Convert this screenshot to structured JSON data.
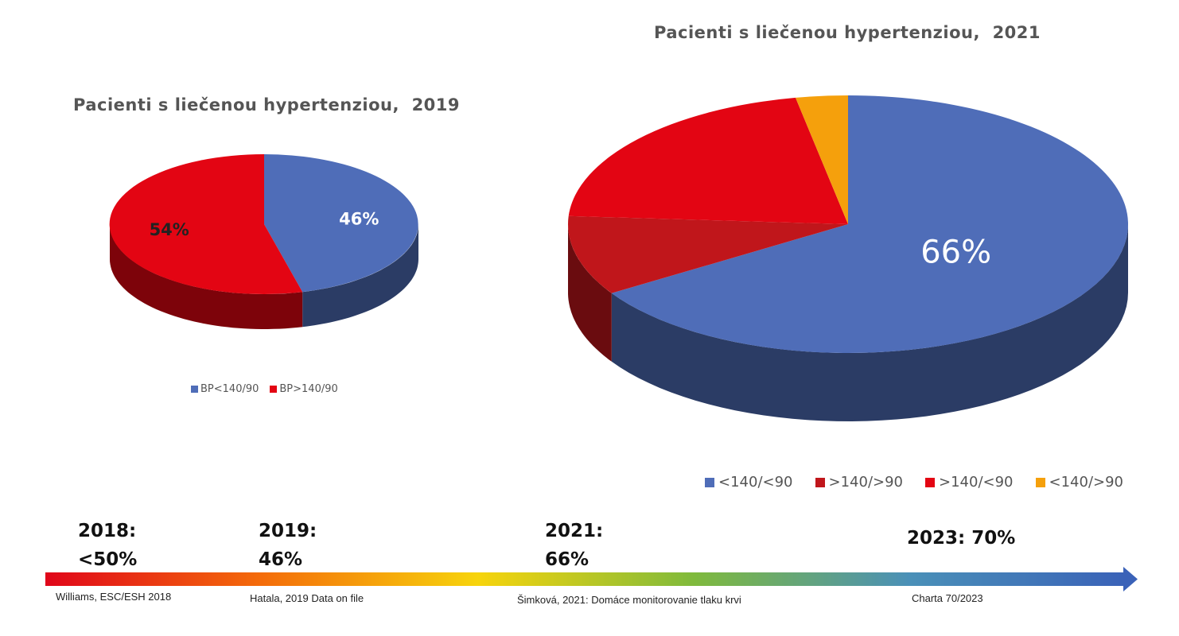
{
  "chart_data": [
    {
      "type": "pie",
      "title": "Pacienti s liečenou hypertenziou,  2019",
      "series": [
        {
          "name": "BP<140/90",
          "value": 46,
          "label": "46%",
          "color": "#4f6db8"
        },
        {
          "name": "BP>140/90",
          "value": 54,
          "label": "54%",
          "color": "#e30513"
        }
      ],
      "legend_position": "bottom"
    },
    {
      "type": "pie",
      "title": "Pacienti s liečenou hypertenziou,  2021",
      "series": [
        {
          "name": "<140/<90",
          "value": 66,
          "label": "66%",
          "color": "#4f6db8"
        },
        {
          "name": ">140/>90",
          "value": 10,
          "label": "",
          "color": "#c0161b"
        },
        {
          "name": ">140/<90",
          "value": 21,
          "label": "",
          "color": "#e30513"
        },
        {
          "name": "<140/>90",
          "value": 3,
          "label": "",
          "color": "#f5a00c"
        }
      ],
      "legend_position": "bottom"
    }
  ],
  "timeline": {
    "milestones": [
      {
        "year": "2018:",
        "value": "<50%"
      },
      {
        "year": "2019:",
        "value": "46%"
      },
      {
        "year": "2021:",
        "value": "66%"
      },
      {
        "year": "",
        "value": "2023: 70%"
      }
    ],
    "sources": [
      "Williams, ESC/ESH 2018",
      "Hatala, 2019 Data on file",
      "Šimková, 2021: Domáce monitorovanie tlaku krvi",
      "Charta 70/2023"
    ],
    "gradient_colors": [
      "#e0061a",
      "#f46c0a",
      "#f7d40c",
      "#7fba3c",
      "#4a90b8",
      "#3a62b8"
    ]
  }
}
